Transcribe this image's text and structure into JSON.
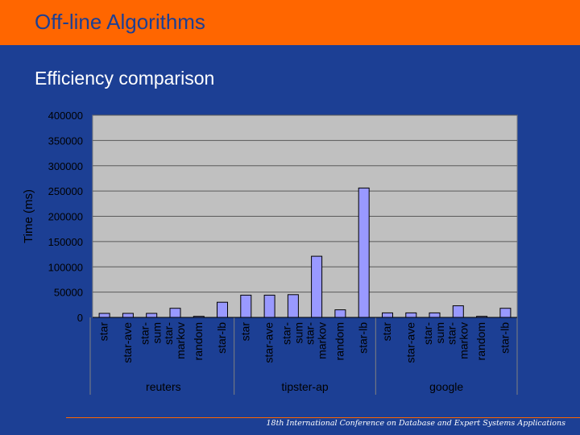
{
  "slide": {
    "title": "Off-line Algorithms",
    "subtitle": "Efficiency comparison",
    "footer": "18th International Conference on Database and Expert Systems Applications"
  },
  "colors": {
    "background": "#1c3f94",
    "title_bar": "#ff6600",
    "plot_area": "#c0c0c0",
    "bar_fill": "#9999ff"
  },
  "chart_data": {
    "type": "bar",
    "ylabel": "Time (ms)",
    "ylim": [
      0,
      400000
    ],
    "yticks": [
      "400000",
      "350000",
      "300000",
      "250000",
      "200000",
      "150000",
      "100000",
      "50000",
      "0"
    ],
    "grid": true,
    "groups": [
      {
        "name": "reuters",
        "categories": [
          "star",
          "star-ave",
          "star-sum",
          "star-markov",
          "random",
          "star-lb"
        ],
        "tick_lines": [
          [
            "star"
          ],
          [
            "star-ave"
          ],
          [
            "star-",
            "sum"
          ],
          [
            "star-",
            "markov"
          ],
          [
            "random"
          ],
          [
            "star-lb"
          ]
        ],
        "values": [
          8000,
          8000,
          8000,
          18000,
          2000,
          30000
        ]
      },
      {
        "name": "tipster-ap",
        "categories": [
          "star",
          "star-ave",
          "star-sum",
          "star-markov",
          "random",
          "star-lb"
        ],
        "tick_lines": [
          [
            "star"
          ],
          [
            "star-ave"
          ],
          [
            "star-",
            "sum"
          ],
          [
            "star-",
            "markov"
          ],
          [
            "random"
          ],
          [
            "star-lb"
          ]
        ],
        "values": [
          44000,
          44000,
          45000,
          121000,
          15000,
          256000
        ]
      },
      {
        "name": "google",
        "categories": [
          "star",
          "star-ave",
          "star-sum",
          "star-markov",
          "random",
          "star-lb"
        ],
        "tick_lines": [
          [
            "star"
          ],
          [
            "star-ave"
          ],
          [
            "star-",
            "sum"
          ],
          [
            "star-",
            "markov"
          ],
          [
            "random"
          ],
          [
            "star-lb"
          ]
        ],
        "values": [
          9000,
          9000,
          9000,
          23000,
          2000,
          18000
        ]
      }
    ]
  }
}
